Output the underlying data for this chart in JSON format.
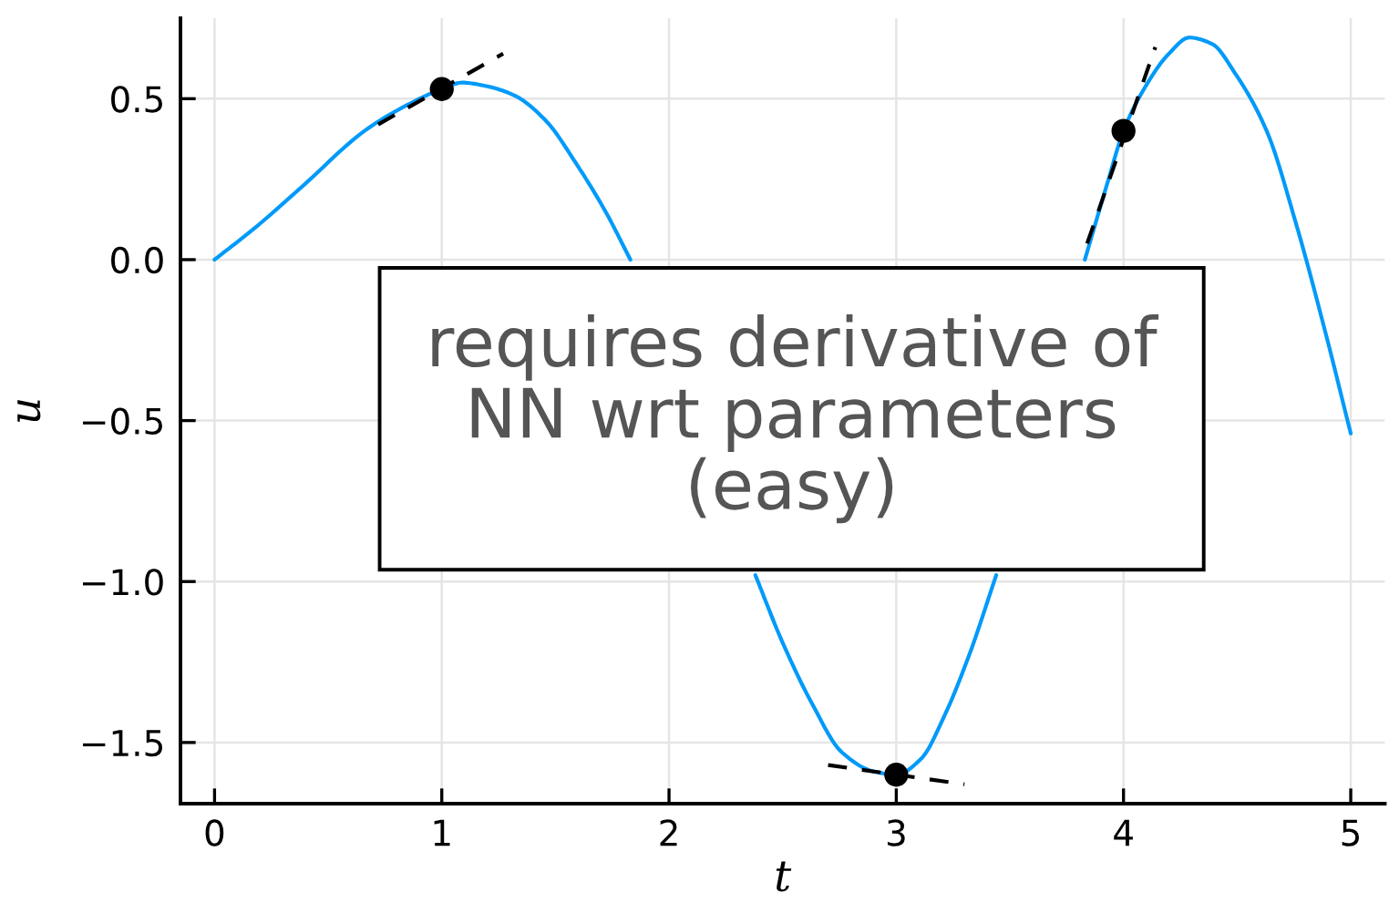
{
  "chart_data": {
    "type": "line",
    "xlabel": "t",
    "ylabel": "u",
    "annotations": [
      "requires derivative of\nNN wrt parameters\n(easy)"
    ],
    "xlim": [
      -0.15,
      5.15
    ],
    "ylim": [
      -1.69,
      0.75
    ],
    "xticks": [
      0,
      1,
      2,
      3,
      4,
      5
    ],
    "yticks": [
      {
        "value": -1.5,
        "label": "−1.5"
      },
      {
        "value": -1.0,
        "label": "−1.0"
      },
      {
        "value": -0.5,
        "label": "−0.5"
      },
      {
        "value": 0.0,
        "label": "0.0"
      },
      0.5
    ],
    "grid": true,
    "series": [
      {
        "color": "#009af9",
        "line_style": "solid",
        "x": [
          0,
          0.18,
          0.39,
          0.66,
          0.82,
          1.0,
          1.09,
          1.19,
          1.32,
          1.46,
          1.59,
          1.72,
          1.83,
          2.1,
          2.38,
          2.5,
          2.63,
          2.76,
          2.9,
          3.0,
          3.11,
          3.21,
          3.32,
          3.44,
          3.64,
          3.83,
          3.93,
          4.0,
          4.09,
          4.2,
          4.29,
          4.39,
          4.49,
          4.63,
          4.76,
          4.89,
          5.0
        ],
        "values": [
          0,
          0.1,
          0.23,
          0.4,
          0.47,
          0.53,
          0.55,
          0.54,
          0.51,
          0.43,
          0.3,
          0.15,
          0.0,
          null,
          -0.98,
          -1.19,
          -1.38,
          -1.53,
          -1.59,
          -1.6,
          -1.55,
          -1.42,
          -1.23,
          -0.98,
          null,
          0.0,
          0.24,
          0.4,
          0.53,
          0.64,
          0.69,
          0.67,
          0.58,
          0.4,
          0.11,
          -0.23,
          -0.54
        ]
      },
      {
        "color": "#000000",
        "line_style": "dashed",
        "x": [
          0.72,
          1.27
        ],
        "values": [
          0.42,
          0.64
        ]
      },
      {
        "color": "#000000",
        "line_style": "dashed",
        "x": [
          2.7,
          3.3
        ],
        "values": [
          -1.57,
          -1.63
        ]
      },
      {
        "color": "#000000",
        "line_style": "dashed",
        "x": [
          3.84,
          4.14
        ],
        "values": [
          0.05,
          0.66
        ]
      },
      {
        "type": "scatter",
        "color": "#000000",
        "marker": "circle",
        "x": [
          1,
          3,
          4
        ],
        "values": [
          0.53,
          -1.6,
          0.4
        ]
      }
    ]
  }
}
